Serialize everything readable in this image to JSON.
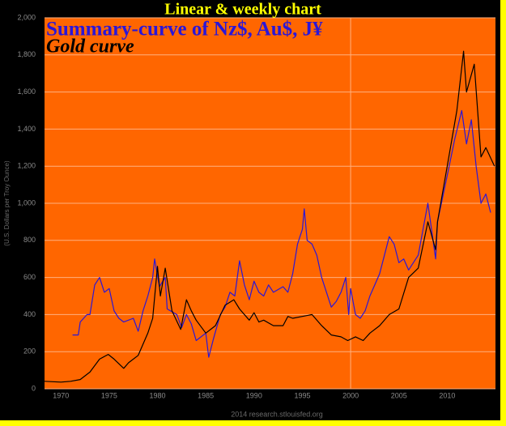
{
  "chart_data": {
    "type": "line",
    "title": "Linear & weekly chart",
    "y_label": "(U.S. Dollars per Troy Ounce)",
    "footer": "2014 research.stlouisfed.org",
    "xlim": [
      1968.3,
      2015
    ],
    "ylim": [
      0,
      2000
    ],
    "xticks": [
      1970,
      1975,
      1980,
      1985,
      1990,
      1995,
      2000,
      2005,
      2010
    ],
    "yticks": [
      0,
      200,
      400,
      600,
      800,
      {
        "value": 1000,
        "label": "1,000"
      },
      {
        "value": 1200,
        "label": "1,200"
      },
      {
        "value": 1400,
        "label": "1,400"
      },
      {
        "value": 1600,
        "label": "1,600"
      },
      {
        "value": 1800,
        "label": "1,800"
      },
      {
        "value": 2000,
        "label": "2,000"
      }
    ],
    "grid": true,
    "vline": 2000,
    "series": [
      {
        "name": "Summary-curve of Nz$, Au$, J¥",
        "color": "#2a16d8",
        "x": [
          1971.2,
          1971.8,
          1972,
          1972.7,
          1973,
          1973.5,
          1974,
          1974.5,
          1975,
          1975.5,
          1976,
          1976.5,
          1977.5,
          1978,
          1978.5,
          1979,
          1979.5,
          1979.7,
          1980.2,
          1980.8,
          1981,
          1982,
          1982.5,
          1983,
          1983.5,
          1984,
          1985,
          1985.3,
          1985.8,
          1986.5,
          1987,
          1987.5,
          1988,
          1988.5,
          1989,
          1989.5,
          1990,
          1990.5,
          1991,
          1991.5,
          1992,
          1993,
          1993.5,
          1994,
          1994.5,
          1995,
          1995.2,
          1995.5,
          1996,
          1996.5,
          1997,
          1998,
          1998.5,
          1999,
          1999.5,
          1999.8,
          2000,
          2000.5,
          2001,
          2001.5,
          2002,
          2003,
          2004,
          2004.5,
          2005,
          2005.5,
          2006,
          2007,
          2008,
          2008.8,
          2009,
          2010,
          2010.8,
          2011.5,
          2012,
          2012.5,
          2013,
          2013.5,
          2014,
          2014.5
        ],
        "values": [
          290,
          290,
          360,
          400,
          400,
          560,
          600,
          520,
          540,
          420,
          380,
          360,
          380,
          310,
          420,
          500,
          600,
          700,
          550,
          600,
          430,
          400,
          330,
          400,
          350,
          260,
          300,
          170,
          270,
          400,
          440,
          520,
          500,
          690,
          560,
          480,
          580,
          520,
          500,
          560,
          520,
          550,
          520,
          620,
          780,
          860,
          970,
          800,
          780,
          720,
          600,
          440,
          470,
          520,
          600,
          400,
          540,
          400,
          380,
          420,
          500,
          620,
          820,
          780,
          680,
          700,
          640,
          720,
          1000,
          700,
          900,
          1150,
          1350,
          1500,
          1320,
          1450,
          1200,
          1000,
          1050,
          950
        ]
      },
      {
        "name": "Gold curve",
        "color": "#000000",
        "x": [
          1968.3,
          1970,
          1971,
          1972,
          1973,
          1974,
          1974.9,
          1975.5,
          1976.5,
          1977,
          1978,
          1979,
          1979.5,
          1980,
          1980.3,
          1980.8,
          1981.5,
          1982.4,
          1983,
          1983.5,
          1984,
          1985,
          1986,
          1987,
          1987.9,
          1988.5,
          1989.5,
          1990,
          1990.5,
          1991,
          1992,
          1993,
          1993.5,
          1994,
          1996,
          1997,
          1998,
          1999,
          1999.7,
          2000.5,
          2001.3,
          2002,
          2003,
          2004,
          2005,
          2006,
          2007,
          2008,
          2008.8,
          2009,
          2010,
          2011,
          2011.7,
          2012,
          2012.8,
          2013.5,
          2014,
          2014.9
        ],
        "values": [
          40,
          36,
          40,
          50,
          90,
          160,
          185,
          160,
          110,
          140,
          180,
          300,
          380,
          660,
          500,
          650,
          420,
          320,
          480,
          420,
          370,
          300,
          340,
          450,
          480,
          430,
          370,
          410,
          360,
          370,
          340,
          340,
          390,
          380,
          400,
          340,
          290,
          280,
          260,
          280,
          260,
          300,
          340,
          400,
          430,
          600,
          650,
          900,
          750,
          900,
          1200,
          1500,
          1820,
          1600,
          1750,
          1250,
          1300,
          1200
        ]
      }
    ]
  }
}
